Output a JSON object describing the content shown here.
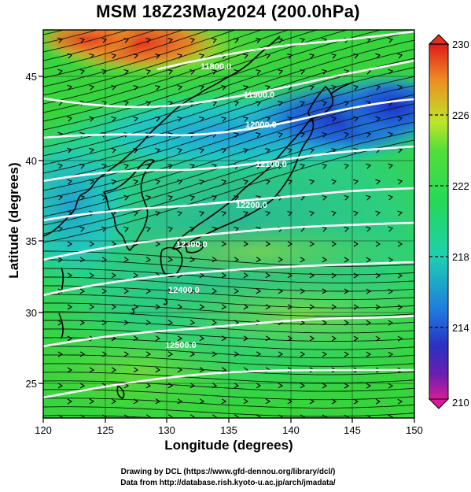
{
  "title": "MSM 18Z23May2024 (200.0hPa)",
  "axes": {
    "xlabel": "Longitude (degrees)",
    "ylabel": "Latitude  (degrees)",
    "xticks": [
      "120",
      "125",
      "130",
      "135",
      "140",
      "145",
      "150"
    ],
    "yticks": [
      "25",
      "30",
      "35",
      "40",
      "45"
    ],
    "xlim": [
      120,
      150
    ],
    "ylim": [
      22.4,
      47.6
    ]
  },
  "colorbar": {
    "labels": [
      "230",
      "226",
      "222",
      "218",
      "214",
      "210"
    ],
    "range": [
      210,
      230
    ],
    "colors": [
      "#d81b9a",
      "#6a1fb0",
      "#1f2fc8",
      "#1f7de0",
      "#19c8d4",
      "#20d880",
      "#38d838",
      "#a8e028",
      "#e8e020",
      "#f0a020",
      "#e84020"
    ]
  },
  "contours": {
    "labels": [
      "11800.0",
      "11900.0",
      "12000.0",
      "12100.0",
      "12200.0",
      "12300.0",
      "12400.0",
      "12500.0"
    ]
  },
  "credits": {
    "line1": "Drawing by DCL (https://www.gfd-dennou.org/library/dcl/)",
    "line2": "Data from http://database.rish.kyoto-u.ac.jp/arch/jmadata/"
  }
}
